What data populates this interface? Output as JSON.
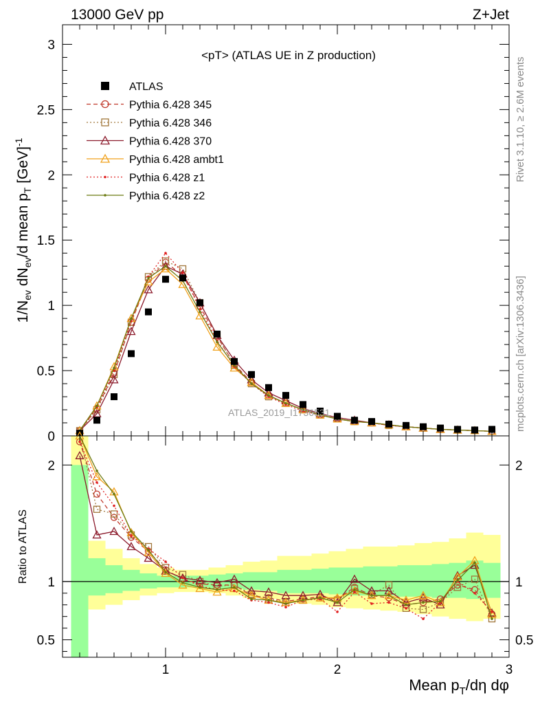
{
  "header": {
    "left": "13000 GeV pp",
    "right": "Z+Jet"
  },
  "side_text": {
    "rivet": "Rivet 3.1.10, ≥ 2.6M events",
    "mcplots": "mcplots.cern.ch [arXiv:1306.3436]"
  },
  "watermark": "ATLAS_2019_I1736531",
  "colors": {
    "atlas": "#000000",
    "p345": "#c0392b",
    "p346": "#a0763a",
    "p370": "#8b1a2b",
    "ambt1": "#f0a01a",
    "z1": "#e02020",
    "z2": "#6b7a10",
    "band_inner": "#99ff99",
    "band_outer": "#ffff99"
  },
  "chart_data": [
    {
      "type": "scatter",
      "title": "<pT> (ATLAS UE in Z production)",
      "ylabel": "1/N_ev dN_ev/d mean p_T [GeV]^-1",
      "xlabel": "Mean p_T/dη dφ",
      "xlim": [
        0.4,
        3.0
      ],
      "ylim": [
        0,
        3.15
      ],
      "yticks": [
        "0",
        "0.5",
        "1",
        "1.5",
        "2",
        "2.5",
        "3"
      ],
      "x": [
        0.5,
        0.6,
        0.7,
        0.8,
        0.9,
        1.0,
        1.1,
        1.2,
        1.3,
        1.4,
        1.5,
        1.6,
        1.7,
        1.8,
        1.9,
        2.0,
        2.1,
        2.2,
        2.3,
        2.4,
        2.5,
        2.6,
        2.7,
        2.8,
        2.9
      ],
      "series": [
        {
          "name": "ATLAS",
          "key": "atlas",
          "values": [
            0.02,
            0.12,
            0.3,
            0.63,
            0.95,
            1.2,
            1.21,
            1.02,
            0.78,
            0.57,
            0.47,
            0.37,
            0.31,
            0.24,
            0.19,
            0.15,
            0.12,
            0.11,
            0.09,
            0.08,
            0.07,
            0.06,
            0.05,
            0.045,
            0.05
          ]
        },
        {
          "name": "Pythia 6.428 345",
          "key": "p345",
          "values": [
            0.04,
            0.21,
            0.48,
            0.87,
            1.2,
            1.33,
            1.23,
            0.99,
            0.76,
            0.55,
            0.41,
            0.31,
            0.25,
            0.2,
            0.16,
            0.13,
            0.11,
            0.1,
            0.08,
            0.07,
            0.06,
            0.05,
            0.045,
            0.04,
            0.035
          ]
        },
        {
          "name": "Pythia 6.428 346",
          "key": "p346",
          "values": [
            0.04,
            0.2,
            0.47,
            0.87,
            1.22,
            1.34,
            1.28,
            1.02,
            0.77,
            0.54,
            0.4,
            0.3,
            0.25,
            0.2,
            0.16,
            0.13,
            0.11,
            0.1,
            0.08,
            0.07,
            0.06,
            0.05,
            0.045,
            0.04,
            0.035
          ]
        },
        {
          "name": "Pythia 6.428 370",
          "key": "p370",
          "values": [
            0.04,
            0.17,
            0.43,
            0.8,
            1.12,
            1.3,
            1.24,
            1.02,
            0.77,
            0.58,
            0.43,
            0.33,
            0.27,
            0.21,
            0.17,
            0.14,
            0.12,
            0.1,
            0.085,
            0.07,
            0.06,
            0.05,
            0.045,
            0.04,
            0.035
          ]
        },
        {
          "name": "Pythia 6.428 ambt1",
          "key": "ambt1",
          "values": [
            0.04,
            0.23,
            0.53,
            0.9,
            1.18,
            1.28,
            1.16,
            0.92,
            0.68,
            0.52,
            0.41,
            0.31,
            0.25,
            0.2,
            0.16,
            0.13,
            0.11,
            0.1,
            0.085,
            0.07,
            0.06,
            0.05,
            0.045,
            0.04,
            0.035
          ]
        },
        {
          "name": "Pythia 6.428 z1",
          "key": "z1",
          "values": [
            0.04,
            0.22,
            0.5,
            0.88,
            1.22,
            1.4,
            1.25,
            0.97,
            0.73,
            0.53,
            0.4,
            0.3,
            0.24,
            0.19,
            0.16,
            0.13,
            0.11,
            0.1,
            0.08,
            0.07,
            0.06,
            0.05,
            0.045,
            0.04,
            0.035
          ]
        },
        {
          "name": "Pythia 6.428 z2",
          "key": "z2",
          "values": [
            0.04,
            0.23,
            0.52,
            0.9,
            1.21,
            1.3,
            1.19,
            0.95,
            0.72,
            0.54,
            0.4,
            0.31,
            0.25,
            0.2,
            0.16,
            0.13,
            0.11,
            0.1,
            0.085,
            0.07,
            0.06,
            0.05,
            0.045,
            0.04,
            0.035
          ]
        }
      ]
    },
    {
      "type": "line",
      "ylabel": "Ratio to ATLAS",
      "xlabel": "Mean p_T/dη dφ",
      "xlim": [
        0.4,
        3.0
      ],
      "ylim": [
        0.35,
        2.25
      ],
      "xticks": [
        "1",
        "2",
        "3"
      ],
      "yticks": [
        "0.5",
        "1",
        "2"
      ],
      "x": [
        0.5,
        0.6,
        0.7,
        0.8,
        0.9,
        1.0,
        1.1,
        1.2,
        1.3,
        1.4,
        1.5,
        1.6,
        1.7,
        1.8,
        1.9,
        2.0,
        2.1,
        2.2,
        2.3,
        2.4,
        2.5,
        2.6,
        2.7,
        2.8,
        2.9
      ],
      "band_inner": [
        [
          0.35,
          2.0
        ],
        [
          0.88,
          1.2
        ],
        [
          0.9,
          1.14
        ],
        [
          0.92,
          1.1
        ],
        [
          0.94,
          1.07
        ],
        [
          0.95,
          1.05
        ],
        [
          0.95,
          1.05
        ],
        [
          0.95,
          1.05
        ],
        [
          0.94,
          1.06
        ],
        [
          0.94,
          1.07
        ],
        [
          0.93,
          1.08
        ],
        [
          0.92,
          1.08
        ],
        [
          0.9,
          1.1
        ],
        [
          0.9,
          1.1
        ],
        [
          0.9,
          1.11
        ],
        [
          0.89,
          1.12
        ],
        [
          0.88,
          1.12
        ],
        [
          0.88,
          1.13
        ],
        [
          0.88,
          1.13
        ],
        [
          0.87,
          1.14
        ],
        [
          0.87,
          1.14
        ],
        [
          0.86,
          1.15
        ],
        [
          0.86,
          1.16
        ],
        [
          0.85,
          1.18
        ],
        [
          0.86,
          1.16
        ]
      ],
      "band_outer": [
        [
          0.35,
          2.25
        ],
        [
          0.76,
          1.35
        ],
        [
          0.8,
          1.28
        ],
        [
          0.84,
          1.2
        ],
        [
          0.88,
          1.15
        ],
        [
          0.9,
          1.12
        ],
        [
          0.91,
          1.1
        ],
        [
          0.91,
          1.1
        ],
        [
          0.9,
          1.12
        ],
        [
          0.88,
          1.14
        ],
        [
          0.86,
          1.17
        ],
        [
          0.85,
          1.18
        ],
        [
          0.82,
          1.22
        ],
        [
          0.81,
          1.22
        ],
        [
          0.8,
          1.24
        ],
        [
          0.78,
          1.26
        ],
        [
          0.77,
          1.28
        ],
        [
          0.76,
          1.3
        ],
        [
          0.75,
          1.3
        ],
        [
          0.74,
          1.31
        ],
        [
          0.72,
          1.33
        ],
        [
          0.7,
          1.34
        ],
        [
          0.68,
          1.37
        ],
        [
          0.66,
          1.42
        ],
        [
          0.68,
          1.4
        ]
      ],
      "series": [
        {
          "name": "Pythia 6.428 345",
          "key": "p345",
          "values": [
            2.2,
            1.75,
            1.55,
            1.38,
            1.26,
            1.1,
            1.02,
            0.98,
            0.97,
            0.97,
            0.88,
            0.86,
            0.83,
            0.85,
            0.87,
            0.85,
            0.95,
            0.88,
            0.86,
            0.8,
            0.82,
            0.85,
            0.97,
            0.93,
            0.72
          ]
        },
        {
          "name": "Pythia 6.428 346",
          "key": "p346",
          "values": [
            2.3,
            1.62,
            1.58,
            1.4,
            1.3,
            1.12,
            1.06,
            1.0,
            0.96,
            0.97,
            0.89,
            0.85,
            0.82,
            0.84,
            0.86,
            0.84,
            0.94,
            0.89,
            0.97,
            0.77,
            0.76,
            0.82,
            0.95,
            1.02,
            0.68
          ]
        },
        {
          "name": "Pythia 6.428 370",
          "key": "p370",
          "values": [
            2.08,
            1.4,
            1.43,
            1.3,
            1.2,
            1.09,
            1.03,
            1.01,
            0.99,
            1.02,
            0.92,
            0.91,
            0.88,
            0.88,
            0.89,
            0.82,
            1.02,
            0.92,
            0.92,
            0.82,
            0.86,
            0.8,
            1.05,
            1.14,
            0.73
          ]
        },
        {
          "name": "Pythia 6.428 ambt1",
          "key": "ambt1",
          "values": [
            2.25,
            1.9,
            1.77,
            1.42,
            1.25,
            1.07,
            0.97,
            0.94,
            0.91,
            0.94,
            0.88,
            0.84,
            0.82,
            0.84,
            0.86,
            0.86,
            0.92,
            0.88,
            0.88,
            0.84,
            0.88,
            0.82,
            1.04,
            1.18,
            0.72
          ]
        },
        {
          "name": "Pythia 6.428 z1",
          "key": "z1",
          "values": [
            2.2,
            1.85,
            1.65,
            1.39,
            1.28,
            1.17,
            1.03,
            0.96,
            0.93,
            0.92,
            0.84,
            0.82,
            0.78,
            0.84,
            0.85,
            0.74,
            0.91,
            0.81,
            0.82,
            0.77,
            0.68,
            0.82,
            1.0,
            0.9,
            0.74
          ]
        },
        {
          "name": "Pythia 6.428 z2",
          "key": "z2",
          "values": [
            2.3,
            1.95,
            1.75,
            1.43,
            1.27,
            1.08,
            0.99,
            0.95,
            0.93,
            0.95,
            0.85,
            0.84,
            0.81,
            0.84,
            0.86,
            0.82,
            0.93,
            0.88,
            0.88,
            0.8,
            0.82,
            0.83,
            1.01,
            1.16,
            0.68
          ]
        }
      ]
    }
  ]
}
